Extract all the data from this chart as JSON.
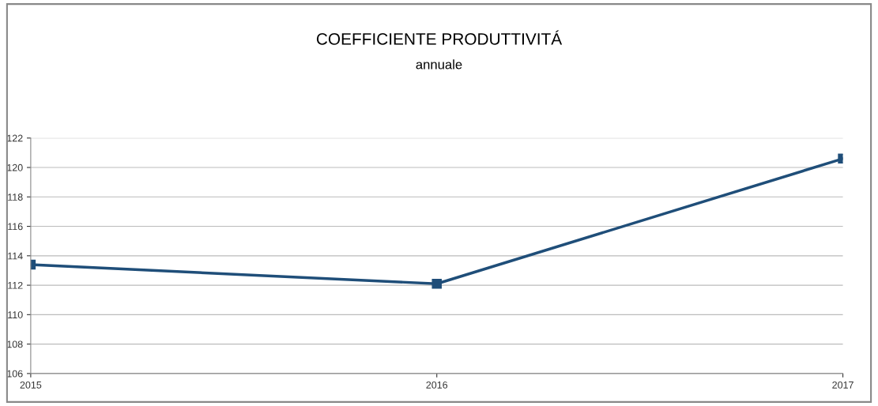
{
  "chart_data": {
    "type": "line",
    "title": "COEFFICIENTE PRODUTTIVITÁ",
    "subtitle": "annuale",
    "categories": [
      "2015",
      "2016",
      "2017"
    ],
    "series": [
      {
        "color": "#1f4e79",
        "values": [
          113.4,
          112.1,
          120.6
        ]
      }
    ],
    "ylim": [
      106,
      122
    ],
    "yticks": [
      106,
      108,
      110,
      112,
      114,
      116,
      118,
      120,
      122
    ],
    "grid": "y",
    "marker": "square",
    "line_style": "solid",
    "legend": false
  }
}
